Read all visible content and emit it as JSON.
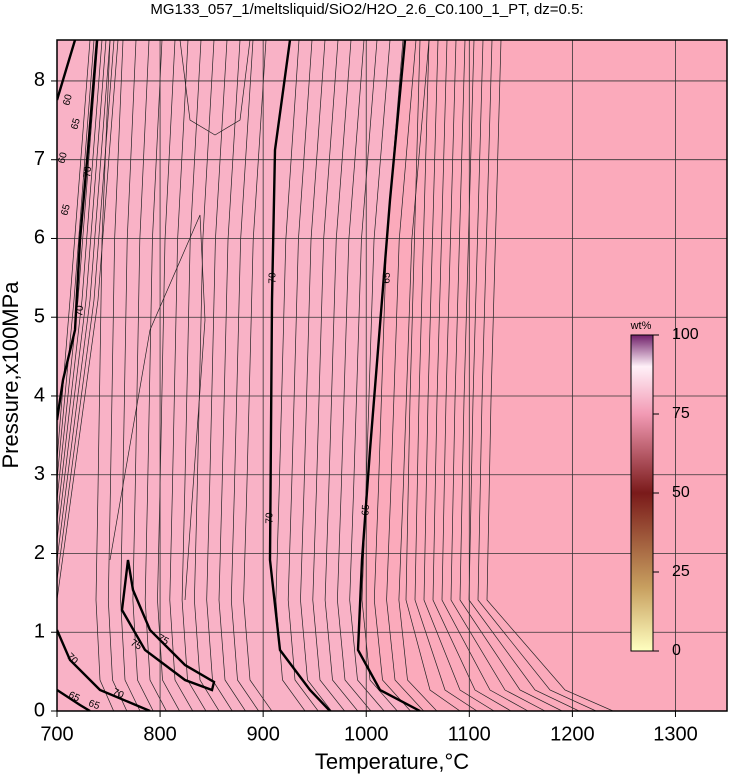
{
  "chart_data": {
    "type": "contour",
    "title": "MG133_057_1/meltsliquid/SiO2/H2O_2.6_C0.100_1_PT, dz=0.5:",
    "x_label": "Temperature,°C",
    "y_label": "Pressure,x100MPa",
    "xlim": [
      700,
      1350
    ],
    "xticks": [
      700,
      800,
      900,
      1000,
      1100,
      1200,
      1300
    ],
    "ylim": [
      0,
      8.52
    ],
    "yticks": [
      0,
      1,
      2,
      3,
      4,
      5,
      6,
      7,
      8
    ],
    "grid": true,
    "colorbar": {
      "label": "wt%",
      "lim": [
        0,
        100
      ],
      "ticks": [
        0,
        25,
        50,
        75,
        100
      ]
    },
    "contour_labels": [
      60,
      65,
      60,
      65,
      70,
      70,
      70,
      70,
      65,
      65,
      75,
      75,
      70,
      70,
      65,
      65
    ]
  }
}
